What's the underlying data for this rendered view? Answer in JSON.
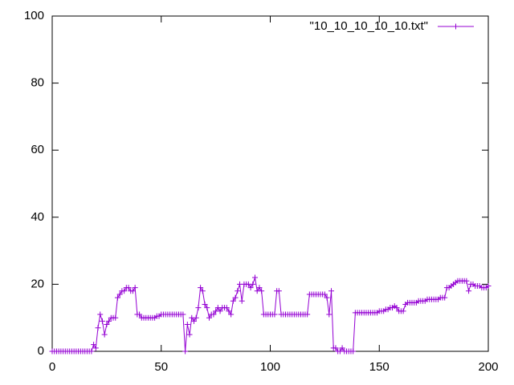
{
  "chart_data": {
    "type": "line",
    "x": [
      0,
      1,
      2,
      3,
      4,
      5,
      6,
      7,
      8,
      9,
      10,
      11,
      12,
      13,
      14,
      15,
      16,
      17,
      18,
      19,
      20,
      21,
      22,
      23,
      24,
      25,
      26,
      27,
      28,
      29,
      30,
      31,
      32,
      33,
      34,
      35,
      36,
      37,
      38,
      39,
      40,
      41,
      42,
      43,
      44,
      45,
      46,
      47,
      48,
      49,
      50,
      51,
      52,
      53,
      54,
      55,
      56,
      57,
      58,
      59,
      60,
      61,
      62,
      63,
      64,
      65,
      66,
      67,
      68,
      69,
      70,
      71,
      72,
      73,
      74,
      75,
      76,
      77,
      78,
      79,
      80,
      81,
      82,
      83,
      84,
      85,
      86,
      87,
      88,
      89,
      90,
      91,
      92,
      93,
      94,
      95,
      96,
      97,
      98,
      99,
      100,
      101,
      102,
      103,
      104,
      105,
      106,
      107,
      108,
      109,
      110,
      111,
      112,
      113,
      114,
      115,
      116,
      117,
      118,
      119,
      120,
      121,
      122,
      123,
      124,
      125,
      126,
      127,
      128,
      129,
      130,
      131,
      132,
      133,
      134,
      135,
      136,
      137,
      138,
      139,
      140,
      141,
      142,
      143,
      144,
      145,
      146,
      147,
      148,
      149,
      150,
      151,
      152,
      153,
      154,
      155,
      156,
      157,
      158,
      159,
      160,
      161,
      162,
      163,
      164,
      165,
      166,
      167,
      168,
      169,
      170,
      171,
      172,
      173,
      174,
      175,
      176,
      177,
      178,
      179,
      180,
      181,
      182,
      183,
      184,
      185,
      186,
      187,
      188,
      189,
      190,
      191,
      192,
      193,
      194,
      195,
      196,
      197,
      198,
      199,
      200
    ],
    "series": [
      {
        "name": "\"10_10_10_10_10.txt\"",
        "color": "#9400d3",
        "values": [
          0,
          0,
          0,
          0,
          0,
          0,
          0,
          0,
          0,
          0,
          0,
          0,
          0,
          0,
          0,
          0,
          0,
          0,
          0,
          2,
          1,
          7,
          11,
          9,
          5,
          8,
          9,
          10,
          10,
          10,
          16,
          17,
          18,
          18,
          19,
          19,
          18,
          18,
          19,
          11,
          11,
          10,
          10,
          10,
          10,
          10,
          10,
          10,
          10.5,
          10.5,
          11,
          11,
          11,
          11,
          11,
          11,
          11,
          11,
          11,
          11,
          11,
          0,
          8,
          5,
          10,
          9,
          10,
          13,
          19,
          18,
          14,
          13,
          10,
          11,
          11,
          12,
          13,
          12,
          13,
          13,
          13,
          12,
          11,
          15,
          16,
          18,
          20,
          15,
          20,
          20,
          20,
          19,
          20,
          22,
          18,
          19,
          18,
          11,
          11,
          11,
          11,
          11,
          11,
          18,
          18,
          11,
          11,
          11,
          11,
          11,
          11,
          11,
          11,
          11,
          11,
          11,
          11,
          11,
          17,
          17,
          17,
          17,
          17,
          17,
          17,
          17,
          16,
          11,
          18,
          1,
          1,
          0,
          0,
          1,
          0,
          0,
          0,
          0,
          0,
          11.5,
          11.5,
          11.5,
          11.5,
          11.5,
          11.5,
          11.5,
          11.5,
          11.5,
          11.5,
          11.5,
          12,
          12,
          12,
          12.5,
          12.5,
          13,
          13,
          13.5,
          13,
          12,
          12,
          12,
          14,
          14.5,
          14.5,
          14.5,
          14.5,
          14.5,
          15,
          15,
          15,
          15,
          15.5,
          15.5,
          15.5,
          15.5,
          15.5,
          15.5,
          16,
          16,
          16,
          19,
          19,
          19.5,
          20,
          20.5,
          21,
          21,
          21,
          21,
          21,
          18,
          20,
          20,
          19.5,
          19.5,
          19.5,
          19,
          19,
          19,
          19.5
        ]
      }
    ],
    "xlim": [
      0,
      200
    ],
    "xticks": [
      0,
      50,
      100,
      150,
      200
    ],
    "ylim": [
      0,
      100
    ],
    "yticks": [
      0,
      20,
      40,
      60,
      80,
      100
    ],
    "legend": "top-right"
  }
}
